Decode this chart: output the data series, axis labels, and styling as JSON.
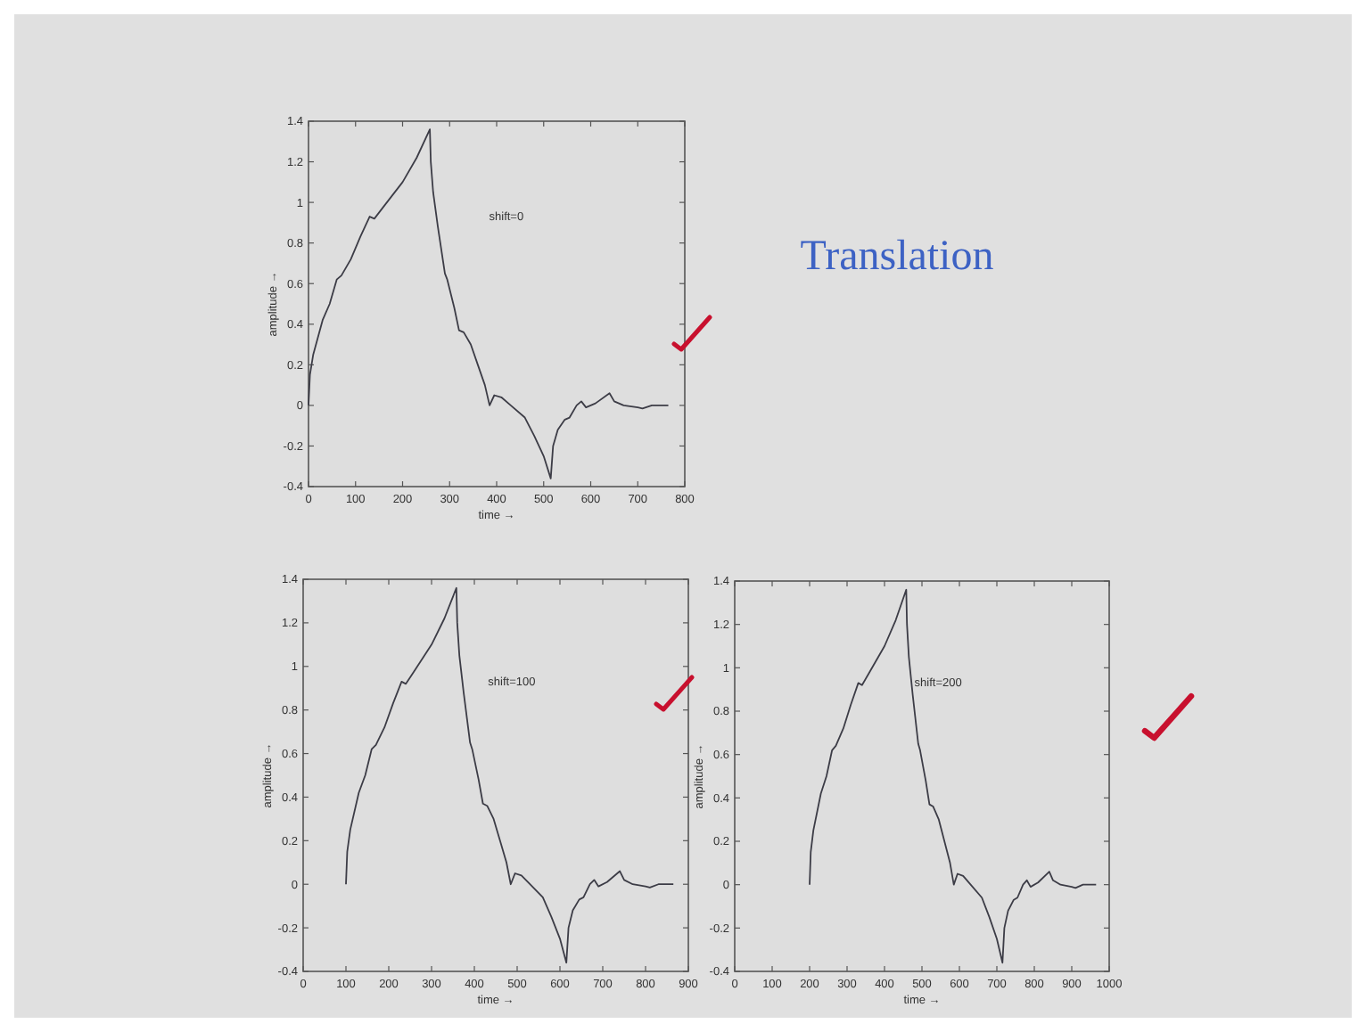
{
  "chart_data": [
    {
      "type": "line",
      "xlabel": "time →",
      "ylabel": "amplitude →",
      "annotations": [
        "shift=0"
      ],
      "x": [
        0,
        3,
        10,
        30,
        45,
        60,
        70,
        90,
        110,
        130,
        140,
        160,
        200,
        230,
        258,
        260,
        265,
        275,
        290,
        295,
        310,
        320,
        330,
        345,
        360,
        375,
        385,
        395,
        410,
        430,
        460,
        480,
        500,
        515,
        520,
        530,
        545,
        555,
        570,
        580,
        590,
        610,
        640,
        650,
        670,
        700,
        710,
        730,
        765
      ],
      "series": [
        {
          "color": "#3c3c46",
          "values": [
            0,
            0.15,
            0.25,
            0.42,
            0.5,
            0.62,
            0.64,
            0.72,
            0.83,
            0.93,
            0.92,
            0.98,
            1.1,
            1.22,
            1.36,
            1.2,
            1.05,
            0.88,
            0.65,
            0.62,
            0.48,
            0.37,
            0.36,
            0.3,
            0.2,
            0.1,
            0,
            0.05,
            0.04,
            0,
            -0.06,
            -0.15,
            -0.25,
            -0.36,
            -0.2,
            -0.12,
            -0.07,
            -0.06,
            0,
            0.02,
            -0.01,
            0.01,
            0.06,
            0.02,
            0,
            -0.01,
            -0.015,
            0,
            0
          ]
        }
      ],
      "xlim": [
        0,
        800
      ],
      "xticks": [
        0,
        100,
        200,
        300,
        400,
        500,
        600,
        700,
        800
      ],
      "ylim": [
        -0.4,
        1.4
      ],
      "yticks": [
        -0.4,
        -0.2,
        0,
        0.2,
        0.4,
        0.6,
        0.8,
        1,
        1.2,
        1.4
      ]
    },
    {
      "type": "other",
      "title": "Translation"
    },
    {
      "type": "line",
      "xlabel": "time →",
      "ylabel": "amplitude →",
      "annotations": [
        "shift=100"
      ],
      "x": [
        100,
        103,
        110,
        130,
        145,
        160,
        170,
        190,
        210,
        230,
        240,
        260,
        300,
        330,
        358,
        360,
        365,
        375,
        390,
        395,
        410,
        420,
        430,
        445,
        460,
        475,
        485,
        495,
        510,
        530,
        560,
        580,
        600,
        615,
        620,
        630,
        645,
        655,
        670,
        680,
        690,
        710,
        740,
        750,
        770,
        800,
        810,
        830,
        865
      ],
      "series": [
        {
          "color": "#3c3c46",
          "values": [
            0,
            0.15,
            0.25,
            0.42,
            0.5,
            0.62,
            0.64,
            0.72,
            0.83,
            0.93,
            0.92,
            0.98,
            1.1,
            1.22,
            1.36,
            1.2,
            1.05,
            0.88,
            0.65,
            0.62,
            0.48,
            0.37,
            0.36,
            0.3,
            0.2,
            0.1,
            0,
            0.05,
            0.04,
            0,
            -0.06,
            -0.15,
            -0.25,
            -0.36,
            -0.2,
            -0.12,
            -0.07,
            -0.06,
            0,
            0.02,
            -0.01,
            0.01,
            0.06,
            0.02,
            0,
            -0.01,
            -0.015,
            0,
            0
          ]
        }
      ],
      "xlim": [
        0,
        900
      ],
      "xticks": [
        0,
        100,
        200,
        300,
        400,
        500,
        600,
        700,
        800,
        900
      ],
      "ylim": [
        -0.4,
        1.4
      ],
      "yticks": [
        -0.4,
        -0.2,
        0,
        0.2,
        0.4,
        0.6,
        0.8,
        1,
        1.2,
        1.4
      ]
    },
    {
      "type": "line",
      "xlabel": "time →",
      "ylabel": "amplitude →",
      "annotations": [
        "shift=200"
      ],
      "x": [
        200,
        203,
        210,
        230,
        245,
        260,
        270,
        290,
        310,
        330,
        340,
        360,
        400,
        430,
        458,
        460,
        465,
        475,
        490,
        495,
        510,
        520,
        530,
        545,
        560,
        575,
        585,
        595,
        610,
        630,
        660,
        680,
        700,
        715,
        720,
        730,
        745,
        755,
        770,
        780,
        790,
        810,
        840,
        850,
        870,
        900,
        910,
        930,
        965
      ],
      "series": [
        {
          "color": "#3c3c46",
          "values": [
            0,
            0.15,
            0.25,
            0.42,
            0.5,
            0.62,
            0.64,
            0.72,
            0.83,
            0.93,
            0.92,
            0.98,
            1.1,
            1.22,
            1.36,
            1.2,
            1.05,
            0.88,
            0.65,
            0.62,
            0.48,
            0.37,
            0.36,
            0.3,
            0.2,
            0.1,
            0,
            0.05,
            0.04,
            0,
            -0.06,
            -0.15,
            -0.25,
            -0.36,
            -0.2,
            -0.12,
            -0.07,
            -0.06,
            0,
            0.02,
            -0.01,
            0.01,
            0.06,
            0.02,
            0,
            -0.01,
            -0.015,
            0,
            0
          ]
        }
      ],
      "xlim": [
        0,
        1000
      ],
      "xticks": [
        0,
        100,
        200,
        300,
        400,
        500,
        600,
        700,
        800,
        900,
        1000
      ],
      "ylim": [
        -0.4,
        1.4
      ],
      "yticks": [
        -0.4,
        -0.2,
        0,
        0.2,
        0.4,
        0.6,
        0.8,
        1,
        1.2,
        1.4
      ]
    }
  ]
}
